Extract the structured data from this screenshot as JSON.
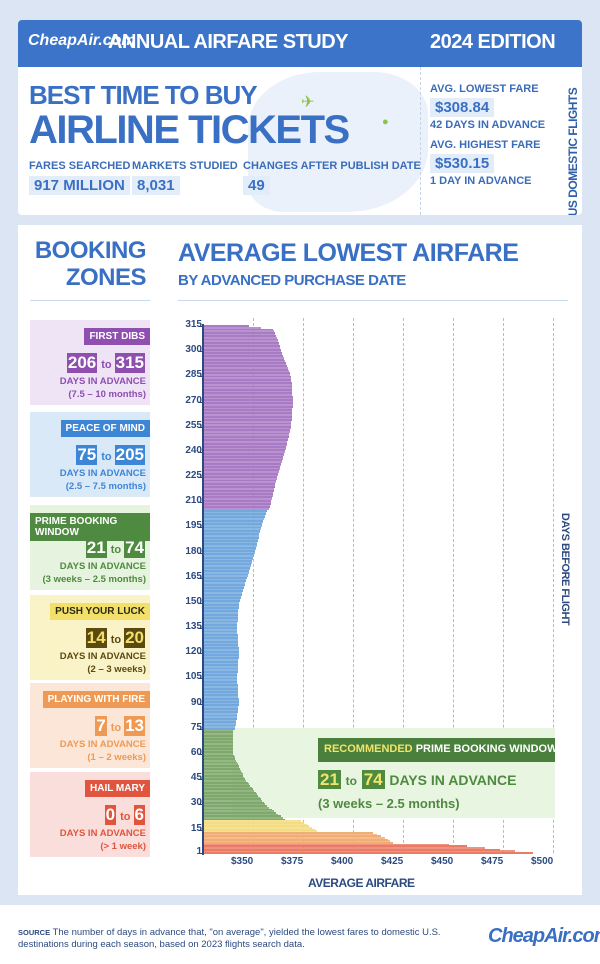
{
  "header": {
    "brand": "CheapAir.com",
    "study": "ANNUAL AIRFARE STUDY",
    "edition": "2024 EDITION",
    "title_line1": "BEST TIME TO BUY",
    "title_line2": "AIRLINE TICKETS",
    "stats": [
      {
        "label": "FARES SEARCHED",
        "value": "917 MILLION"
      },
      {
        "label": "MARKETS STUDIED",
        "value": "8,031"
      },
      {
        "label": "CHANGES AFTER PUBLISH DATE",
        "value": "49"
      }
    ],
    "lowest": {
      "label": "AVG. LOWEST FARE",
      "value": "$308.84",
      "days": "42 DAYS IN ADVANCE"
    },
    "highest": {
      "label": "AVG. HIGHEST FARE",
      "value": "$530.15",
      "days": "1 DAY IN ADVANCE"
    },
    "side": "US DOMESTIC FLIGHTS"
  },
  "zones_title": {
    "l1": "BOOKING",
    "l2": "ZONES"
  },
  "zones": [
    {
      "name": "FIRST DIBS",
      "from": "206",
      "to": "315",
      "days": "DAYS IN ADVANCE",
      "range": "(7.5 – 10 months)",
      "color": "#8e4fb0",
      "bg": "#efe3f6"
    },
    {
      "name": "PEACE OF MIND",
      "from": "75",
      "to": "205",
      "days": "DAYS IN ADVANCE",
      "range": "(2.5 – 7.5 months)",
      "color": "#3d86d6",
      "bg": "#d9e9f7"
    },
    {
      "name": "PRIME BOOKING WINDOW",
      "from": "21",
      "to": "74",
      "days": "DAYS IN ADVANCE",
      "range": "(3 weeks – 2.5 months)",
      "color": "#4e8a3f",
      "bg": "#e6f3df"
    },
    {
      "name": "PUSH YOUR LUCK",
      "from": "14",
      "to": "20",
      "days": "DAYS IN ADVANCE",
      "range": "(2 – 3 weeks)",
      "color": "#5a4a10",
      "bg": "#fbf3c8"
    },
    {
      "name": "PLAYING WITH FIRE",
      "from": "7",
      "to": "13",
      "days": "DAYS IN ADVANCE",
      "range": "(1 – 2 weeks)",
      "color": "#ee9a55",
      "bg": "#fbe6d8"
    },
    {
      "name": "HAIL MARY",
      "from": "0",
      "to": "6",
      "days": "DAYS IN ADVANCE",
      "range": "(> 1 week)",
      "color": "#e0553d",
      "bg": "#fadedb"
    }
  ],
  "to_word": "to",
  "recommended": {
    "word": "RECOMMENDED",
    "rest": "PRIME BOOKING WINDOW",
    "from": "21",
    "to": "74",
    "days": "DAYS IN ADVANCE",
    "range": "(3 weeks – 2.5 months)"
  },
  "chart_data": {
    "type": "bar",
    "orientation": "horizontal",
    "title": "AVERAGE LOWEST AIRFARE",
    "subtitle": "BY ADVANCED PURCHASE DATE",
    "xlabel": "AVERAGE AIRFARE",
    "ylabel": "DAYS BEFORE FLIGHT",
    "xlim": [
      325,
      510
    ],
    "ylim": [
      1,
      315
    ],
    "xticks": [
      "$350",
      "$375",
      "$400",
      "$425",
      "$450",
      "$475",
      "$500"
    ],
    "xtick_values": [
      350,
      375,
      400,
      425,
      450,
      475,
      500
    ],
    "yticks": [
      315,
      300,
      285,
      270,
      255,
      240,
      225,
      210,
      195,
      180,
      165,
      150,
      135,
      120,
      105,
      90,
      75,
      60,
      45,
      30,
      15,
      1
    ],
    "days": [
      315,
      313,
      305,
      300,
      285,
      270,
      255,
      240,
      225,
      210,
      206,
      205,
      195,
      180,
      165,
      150,
      135,
      120,
      105,
      90,
      75,
      74,
      60,
      45,
      30,
      21,
      20,
      15,
      14,
      13,
      10,
      7,
      6,
      4,
      2,
      1
    ],
    "values": [
      348,
      360,
      363,
      364,
      369,
      370,
      369,
      366,
      362,
      359,
      358,
      357,
      354,
      351,
      347,
      343,
      342,
      343,
      342,
      343,
      341,
      340,
      340,
      346,
      356,
      366,
      374,
      381,
      382,
      410,
      416,
      420,
      448,
      466,
      481,
      490
    ],
    "zone_colors": [
      {
        "min": 206,
        "color": "#a97bc4"
      },
      {
        "min": 75,
        "color": "#72a8dd"
      },
      {
        "min": 21,
        "color": "#7fa86d"
      },
      {
        "min": 14,
        "color": "#f4dc80"
      },
      {
        "min": 7,
        "color": "#f2ad74"
      },
      {
        "min": 0,
        "color": "#ea7b65"
      }
    ]
  },
  "footer": {
    "source_label": "SOURCE",
    "source": "The number of days in advance that, \"on average\", yielded the lowest fares to domestic U.S. destinations during each season, based on 2023 flights search data.",
    "brand": "CheapAir.com"
  }
}
